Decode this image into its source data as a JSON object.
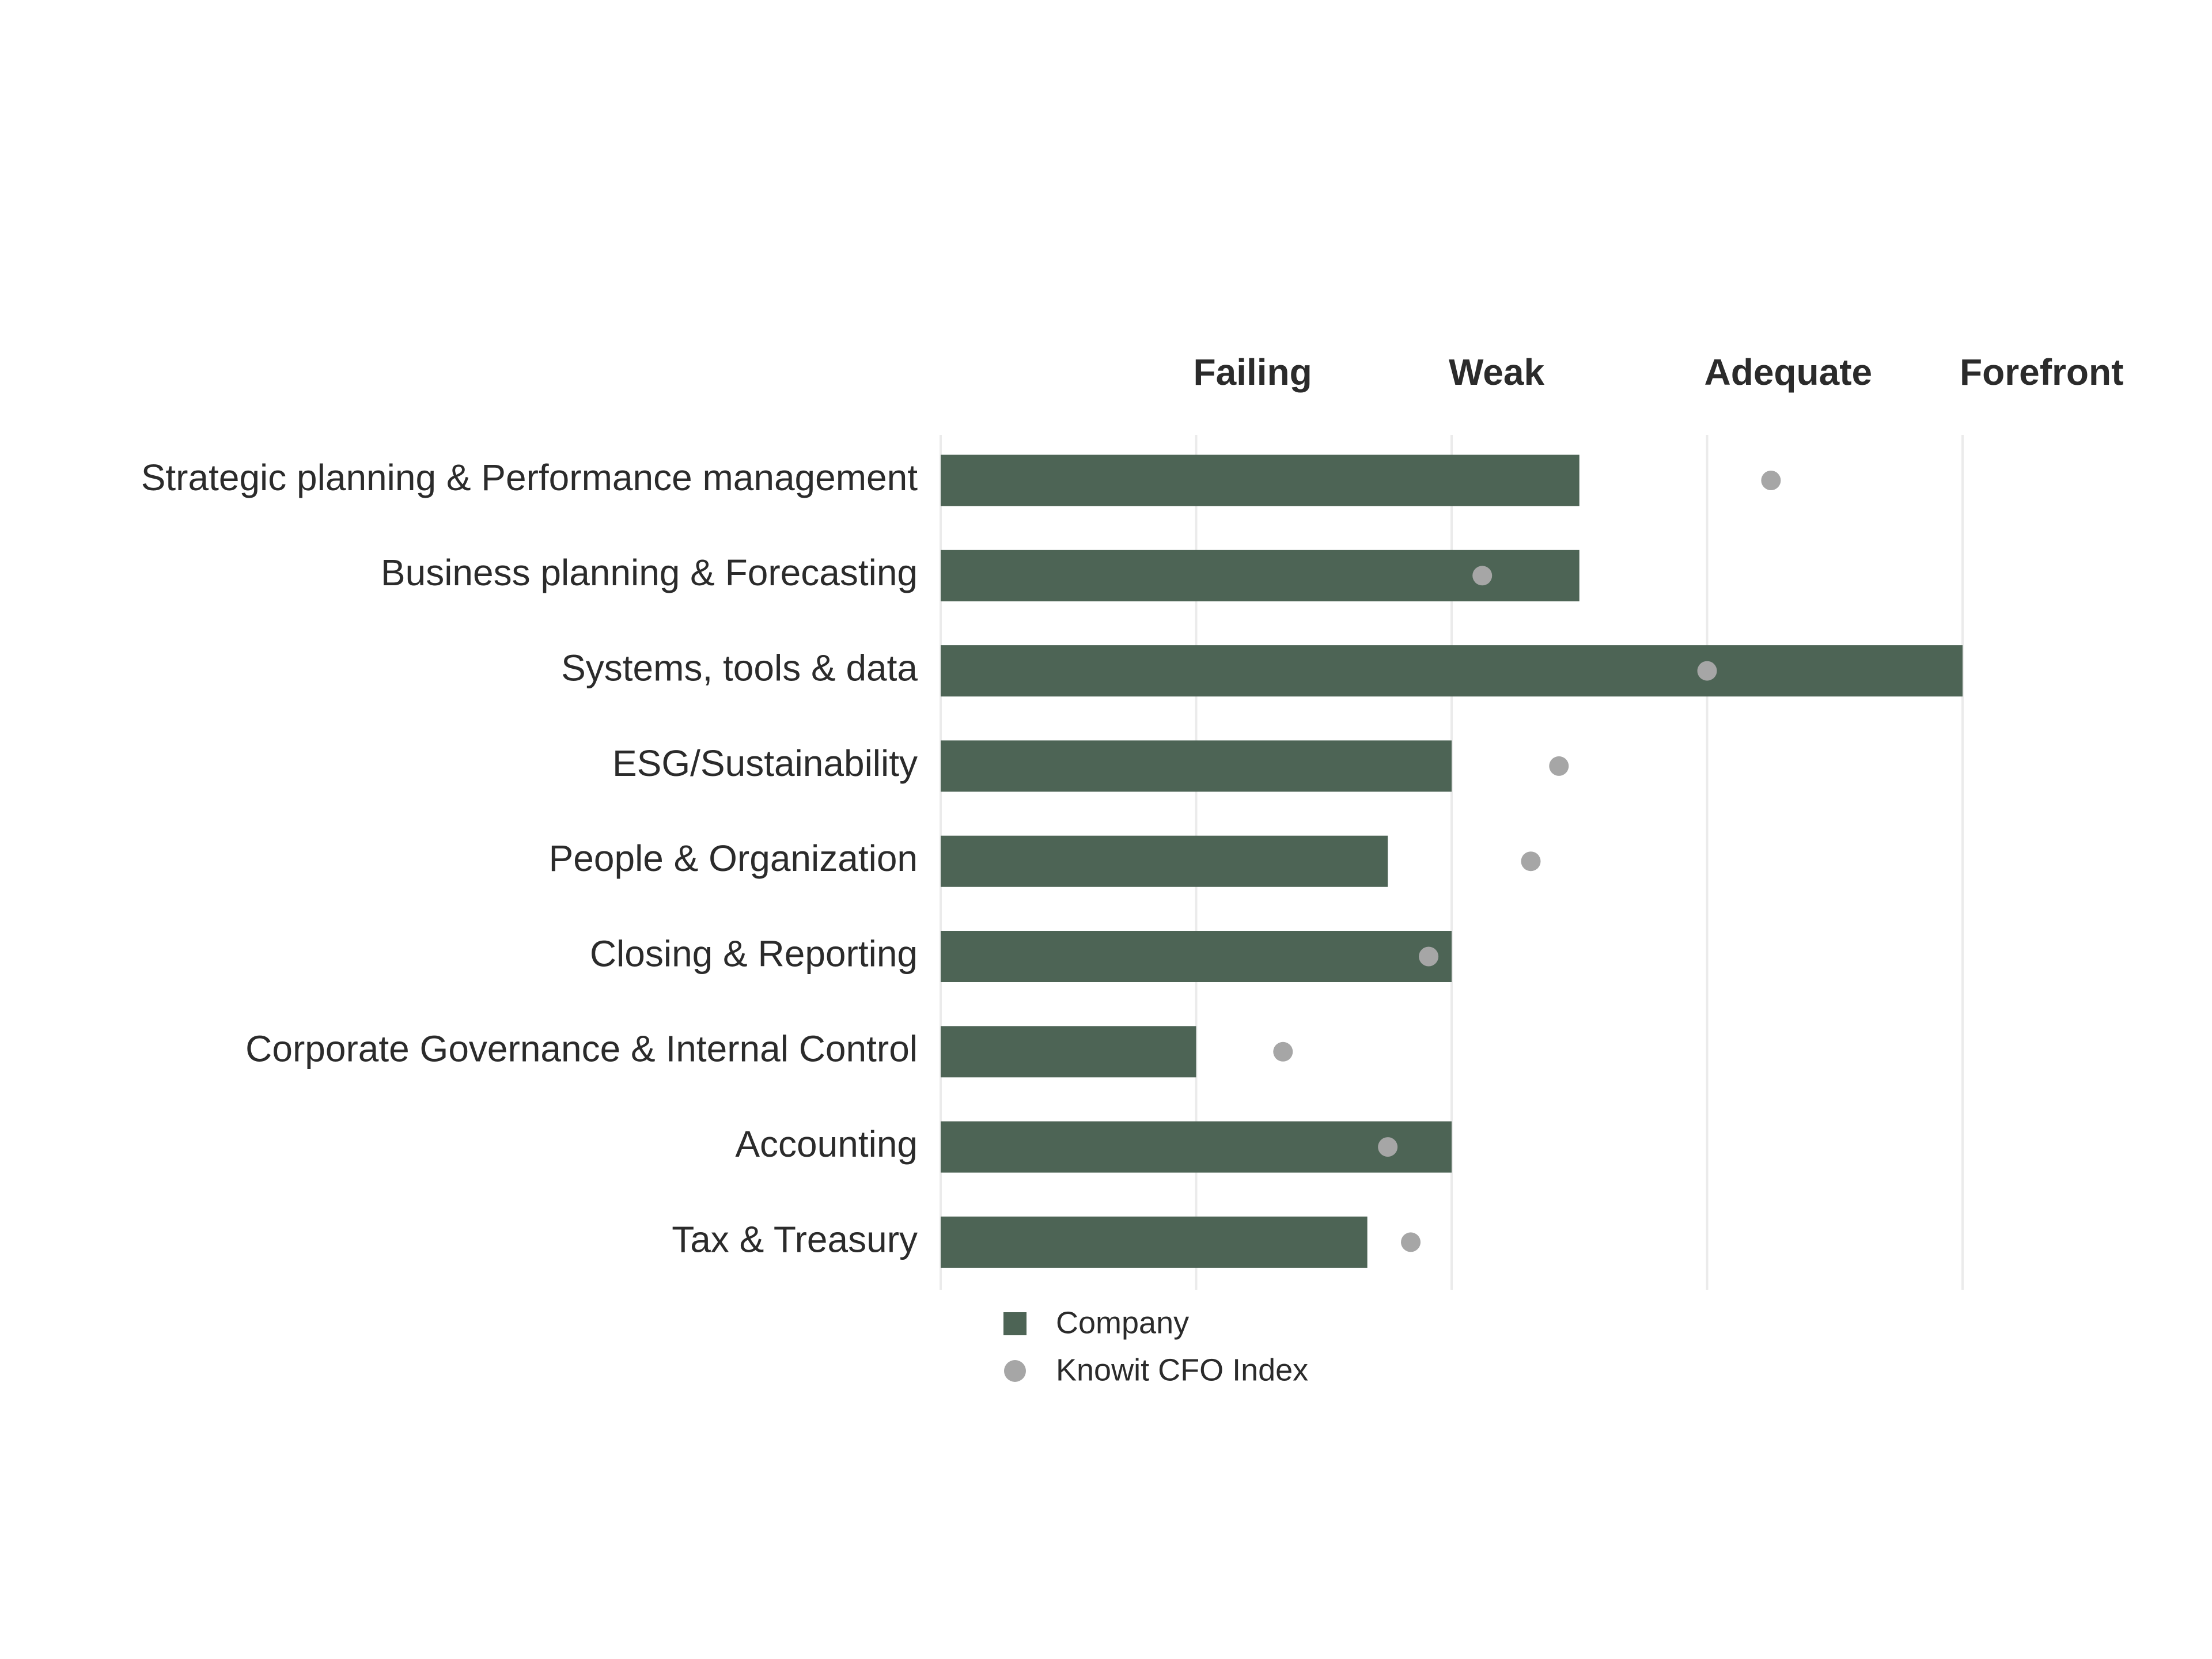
{
  "chart_data": {
    "type": "bar-dot",
    "categories": [
      "Strategic planning & Performance management",
      "Business planning & Forecasting",
      "Systems, tools & data",
      "ESG/Sustainability",
      "People & Organization",
      "Closing & Reporting",
      "Corporate Governance & Internal Control",
      "Accounting",
      "Tax & Treasury"
    ],
    "series": [
      {
        "name": "Company",
        "color": "#4d6455",
        "values": [
          2.5,
          2.5,
          4,
          2,
          1.75,
          2,
          1,
          2,
          1.67
        ]
      },
      {
        "name": "Knowit CFO Index",
        "color": "#a6a6a6",
        "values": [
          3.25,
          2.12,
          3,
          2.42,
          2.31,
          1.91,
          1.34,
          1.75,
          1.84
        ]
      }
    ],
    "xlim": [
      0,
      4
    ],
    "xticks": [
      {
        "value": 0,
        "label": null
      },
      {
        "value": 1,
        "label": "Failing"
      },
      {
        "value": 2,
        "label": "Weak"
      },
      {
        "value": 3,
        "label": "Adequate"
      },
      {
        "value": 4,
        "label": "Forefront"
      }
    ],
    "grid": true
  }
}
